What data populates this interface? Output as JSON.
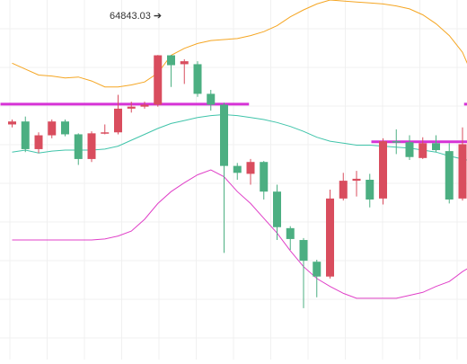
{
  "chart_data": {
    "type": "candlestick",
    "title": "",
    "xlabel": "",
    "ylabel": "",
    "y_range": [
      61760,
      65400
    ],
    "grid": true,
    "colors": {
      "up": "#d94d5e",
      "down": "#4caf82",
      "bb_upper": "#f5a623",
      "bb_middle": "#40c4aa",
      "bb_lower": "#e040c8",
      "level": "#d633d6",
      "grid": "#f0f0f0"
    },
    "annotations": [
      {
        "text": "64843.03 ➔",
        "price": 64843.03
      }
    ],
    "horizontal_levels": [
      {
        "name": "level-1",
        "price": 64345,
        "from_candle": 0,
        "to_candle": 17
      },
      {
        "name": "level-2",
        "price": 63965,
        "from_candle": 28,
        "to_candle": 35
      },
      {
        "name": "level-3",
        "price": 64345,
        "from_candle": 35,
        "to_candle": 35
      }
    ],
    "candles": [
      {
        "open": 64140,
        "close": 64170,
        "high": 64190,
        "low": 64110
      },
      {
        "open": 64170,
        "close": 63890,
        "high": 64220,
        "low": 63860
      },
      {
        "open": 63890,
        "close": 64030,
        "high": 64060,
        "low": 63850
      },
      {
        "open": 64030,
        "close": 64170,
        "high": 64190,
        "low": 64000
      },
      {
        "open": 64170,
        "close": 64040,
        "high": 64190,
        "low": 64020
      },
      {
        "open": 64040,
        "close": 63790,
        "high": 64050,
        "low": 63730
      },
      {
        "open": 63790,
        "close": 64050,
        "high": 64070,
        "low": 63760
      },
      {
        "open": 64050,
        "close": 64060,
        "high": 64140,
        "low": 64040
      },
      {
        "open": 64060,
        "close": 64300,
        "high": 64440,
        "low": 64040
      },
      {
        "open": 64300,
        "close": 64320,
        "high": 64370,
        "low": 64260
      },
      {
        "open": 64320,
        "close": 64340,
        "high": 64370,
        "low": 64300
      },
      {
        "open": 64340,
        "close": 64840,
        "high": 64843,
        "low": 64320
      },
      {
        "open": 64840,
        "close": 64740,
        "high": 64843,
        "low": 64520
      },
      {
        "open": 64750,
        "close": 64780,
        "high": 64800,
        "low": 64550
      },
      {
        "open": 64750,
        "close": 64450,
        "high": 64780,
        "low": 64420
      },
      {
        "open": 64450,
        "close": 64340,
        "high": 64490,
        "low": 64280
      },
      {
        "open": 64340,
        "close": 63720,
        "high": 64360,
        "low": 62840
      },
      {
        "open": 63720,
        "close": 63650,
        "high": 63750,
        "low": 63580
      },
      {
        "open": 63640,
        "close": 63760,
        "high": 63790,
        "low": 63530
      },
      {
        "open": 63760,
        "close": 63460,
        "high": 63770,
        "low": 63380
      },
      {
        "open": 63460,
        "close": 63100,
        "high": 63530,
        "low": 62970
      },
      {
        "open": 63090,
        "close": 62980,
        "high": 63110,
        "low": 62870
      },
      {
        "open": 62970,
        "close": 62760,
        "high": 62990,
        "low": 62280
      },
      {
        "open": 62750,
        "close": 62600,
        "high": 62770,
        "low": 62390
      },
      {
        "open": 62600,
        "close": 63390,
        "high": 63480,
        "low": 62580
      },
      {
        "open": 63390,
        "close": 63570,
        "high": 63650,
        "low": 63370
      },
      {
        "open": 63570,
        "close": 63590,
        "high": 63670,
        "low": 63410
      },
      {
        "open": 63580,
        "close": 63380,
        "high": 63640,
        "low": 63300
      },
      {
        "open": 63390,
        "close": 63970,
        "high": 64000,
        "low": 63330
      },
      {
        "open": 63970,
        "close": 63960,
        "high": 64090,
        "low": 63840
      },
      {
        "open": 63960,
        "close": 63810,
        "high": 64030,
        "low": 63780
      },
      {
        "open": 63800,
        "close": 63950,
        "high": 64010,
        "low": 63790
      },
      {
        "open": 63950,
        "close": 63880,
        "high": 64030,
        "low": 63860
      },
      {
        "open": 63870,
        "close": 63380,
        "high": 63950,
        "low": 63340
      },
      {
        "open": 63390,
        "close": 63940,
        "high": 64110,
        "low": 63370
      },
      {
        "open": 63940,
        "close": 63780,
        "high": 64050,
        "low": 63680
      }
    ],
    "bollinger": {
      "upper": [
        64760,
        64700,
        64640,
        64630,
        64610,
        64620,
        64580,
        64520,
        64520,
        64540,
        64570,
        64660,
        64840,
        64910,
        64960,
        64990,
        65000,
        65010,
        65040,
        65080,
        65140,
        65230,
        65300,
        65360,
        65400,
        65390,
        65380,
        65370,
        65360,
        65340,
        65310,
        65250,
        65160,
        65040,
        64870,
        64560
      ],
      "middle": [
        63860,
        63880,
        63850,
        63870,
        63880,
        63880,
        63880,
        63890,
        63920,
        63980,
        64040,
        64100,
        64150,
        64180,
        64210,
        64230,
        64240,
        64230,
        64210,
        64190,
        64160,
        64120,
        64070,
        64010,
        63970,
        63950,
        63930,
        63930,
        63920,
        63910,
        63900,
        63880,
        63860,
        63820,
        63790,
        63760
      ],
      "lower": [
        62970,
        62970,
        62970,
        62970,
        62970,
        62970,
        62970,
        62980,
        63010,
        63060,
        63180,
        63340,
        63460,
        63550,
        63630,
        63680,
        63610,
        63460,
        63340,
        63190,
        63040,
        62860,
        62700,
        62580,
        62500,
        62430,
        62380,
        62380,
        62380,
        62380,
        62410,
        62440,
        62500,
        62550,
        62650,
        62730
      ]
    }
  }
}
